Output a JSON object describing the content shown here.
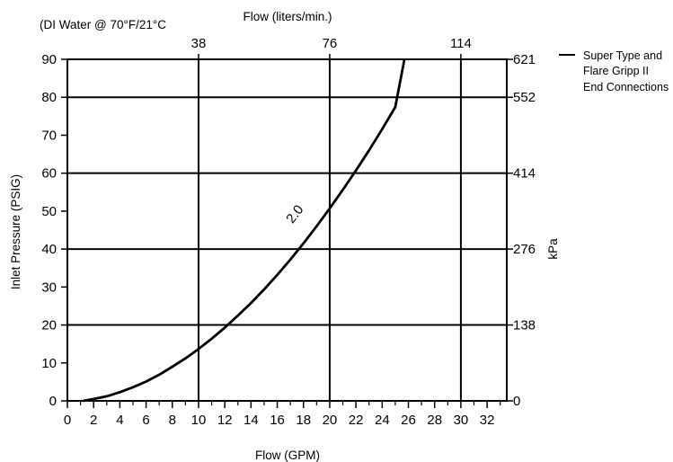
{
  "chart_data": {
    "type": "line",
    "note": "(DI Water @ 70°F/21°C",
    "xlabel": "Flow (GPM)",
    "x2label": "Flow (liters/min.)",
    "ylabel": "Inlet Pressure (PSIG)",
    "y2label": "kPa",
    "xlim": [
      0,
      33.5
    ],
    "ylim": [
      0,
      90
    ],
    "x_ticks": [
      0,
      2,
      4,
      6,
      8,
      10,
      12,
      14,
      16,
      18,
      20,
      22,
      24,
      26,
      28,
      30,
      32
    ],
    "y_ticks": [
      0,
      10,
      20,
      30,
      40,
      50,
      60,
      70,
      80,
      90
    ],
    "x2_ticks": [
      {
        "gpm": 10,
        "label": "38"
      },
      {
        "gpm": 20,
        "label": "76"
      },
      {
        "gpm": 30,
        "label": "114"
      }
    ],
    "y2_ticks": [
      {
        "psig": 0,
        "label": "0"
      },
      {
        "psig": 20,
        "label": "138"
      },
      {
        "psig": 40,
        "label": "276"
      },
      {
        "psig": 60,
        "label": "414"
      },
      {
        "psig": 80,
        "label": "552"
      },
      {
        "psig": 90,
        "label": "621"
      }
    ],
    "grid_x": [
      10,
      20,
      30
    ],
    "grid_y": [
      20,
      40,
      60,
      80,
      90
    ],
    "legend_position": "top-right",
    "series": [
      {
        "name": "Super Type and Flare Gripp II End Connections",
        "label": "2.0",
        "color": "#000000",
        "x": [
          1.2,
          2,
          3,
          4,
          5,
          6,
          7,
          8,
          9,
          10,
          11,
          12,
          13,
          14,
          15,
          16,
          17,
          18,
          19,
          20,
          21,
          22,
          23,
          24,
          25,
          25.7
        ],
        "y": [
          0,
          0.5,
          1.2,
          2.3,
          3.6,
          5.1,
          6.9,
          9.0,
          11.2,
          13.7,
          16.4,
          19.3,
          22.5,
          25.8,
          29.4,
          33.2,
          37.2,
          41.5,
          46.0,
          50.7,
          55.6,
          60.7,
          66.0,
          71.6,
          77.4,
          90
        ]
      }
    ],
    "legend_lines": [
      "Super Type and",
      "Flare Gripp II",
      "End Connections"
    ]
  }
}
